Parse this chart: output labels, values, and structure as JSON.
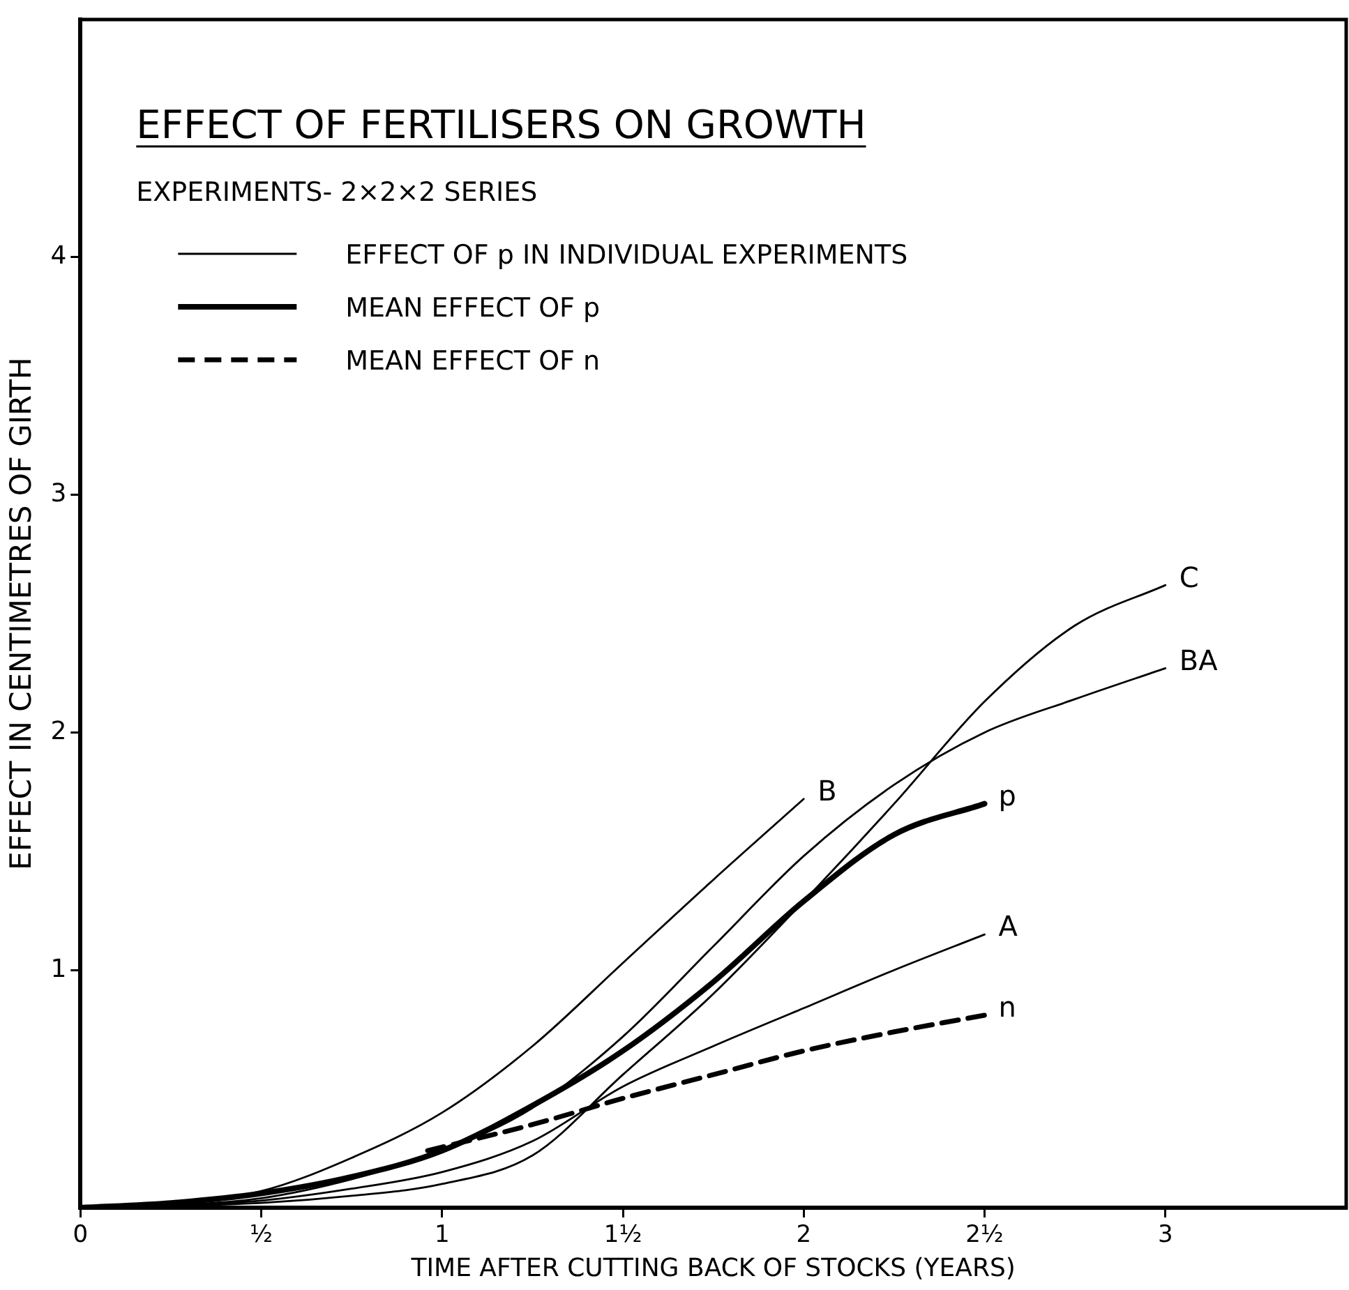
{
  "chart_data": {
    "type": "line",
    "title": "EFFECT OF FERTILISERS ON GROWTH",
    "subtitle": "EXPERIMENTS- 2×2×2 SERIES",
    "xlabel": "TIME AFTER CUTTING BACK OF STOCKS (YEARS)",
    "ylabel": "EFFECT IN CENTIMETRES OF GIRTH",
    "annotations": [
      "EFFECT OF p IN INDIVIDUAL EXPERIMENTS",
      "MEAN EFFECT OF p",
      "MEAN EFFECT OF n"
    ],
    "xlim": [
      0,
      3.5
    ],
    "ylim": [
      0,
      5
    ],
    "xticks": [
      0,
      {
        "value": 0.5,
        "label": "½"
      },
      1,
      {
        "value": 1.5,
        "label": "1½"
      },
      2,
      {
        "value": 2.5,
        "label": "2½"
      },
      3
    ],
    "yticks": [
      1,
      2,
      3,
      4
    ],
    "grid": false,
    "line_style": "solid",
    "series": [
      {
        "name": "B",
        "color": "#000000",
        "x": [
          0,
          0.25,
          0.5,
          0.75,
          1,
          1.25,
          1.5,
          1.75,
          2
        ],
        "values": [
          0,
          0.02,
          0.07,
          0.21,
          0.4,
          0.68,
          1.03,
          1.38,
          1.72
        ]
      },
      {
        "name": "BA",
        "color": "#000000",
        "x": [
          0,
          0.25,
          0.5,
          0.75,
          1,
          1.25,
          1.5,
          1.75,
          2,
          2.25,
          2.5,
          2.75,
          3
        ],
        "values": [
          0,
          0.01,
          0.04,
          0.12,
          0.24,
          0.42,
          0.72,
          1.1,
          1.48,
          1.78,
          2.0,
          2.14,
          2.27
        ]
      },
      {
        "name": "C",
        "color": "#000000",
        "x": [
          0,
          0.5,
          0.75,
          1,
          1.25,
          1.5,
          1.75,
          2,
          2.25,
          2.5,
          2.75,
          3
        ],
        "values": [
          0,
          0.02,
          0.05,
          0.1,
          0.22,
          0.56,
          0.9,
          1.29,
          1.7,
          2.13,
          2.45,
          2.62
        ]
      },
      {
        "name": "A",
        "color": "#000000",
        "x": [
          0,
          0.25,
          0.5,
          0.75,
          1,
          1.25,
          1.5,
          1.75,
          2,
          2.25,
          2.5
        ],
        "values": [
          0,
          0.01,
          0.03,
          0.08,
          0.15,
          0.28,
          0.51,
          0.68,
          0.84,
          1.0,
          1.15
        ]
      },
      {
        "name": "p",
        "color": "#000000",
        "x": [
          0,
          0.25,
          0.5,
          0.75,
          1,
          1.25,
          1.5,
          1.75,
          2,
          2.25,
          2.5
        ],
        "values": [
          0,
          0.02,
          0.06,
          0.13,
          0.24,
          0.43,
          0.66,
          0.95,
          1.29,
          1.57,
          1.7
        ]
      },
      {
        "name": "n",
        "color": "#000000",
        "line_style": "dashed",
        "x": [
          0.96,
          1.25,
          1.5,
          1.75,
          2,
          2.25,
          2.5
        ],
        "values": [
          0.24,
          0.35,
          0.46,
          0.56,
          0.66,
          0.74,
          0.81
        ]
      }
    ]
  }
}
